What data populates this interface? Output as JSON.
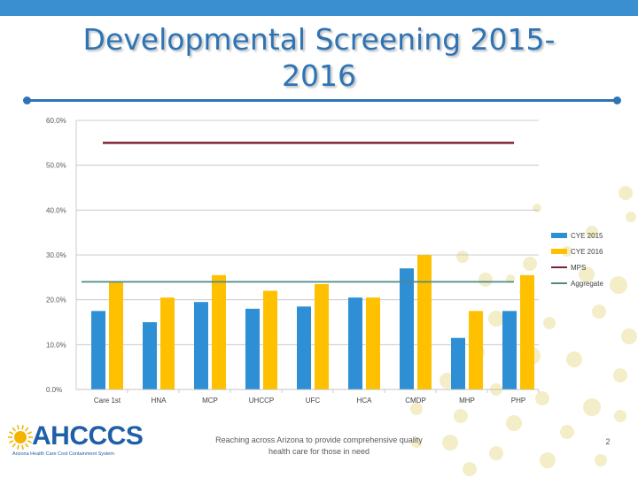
{
  "slide": {
    "title": "Developmental Screening 2015-2016",
    "tagline": "Reaching across Arizona to provide comprehensive quality health care for those in need",
    "page_number": "2",
    "logo_text": "AHCCCS",
    "logo_subtext": "Arizona Health Care Cost Containment System"
  },
  "colors": {
    "accent": "#2e74b5",
    "top_bar": "#3a8fd0",
    "cye2015": "#2e8fd4",
    "cye2016": "#ffc000",
    "mps": "#7b2230",
    "aggregate": "#4e8a85",
    "deco_circle": "#f3eec8"
  },
  "chart_data": {
    "type": "bar",
    "categories": [
      "Care 1st",
      "HNA",
      "MCP",
      "UHCCP",
      "UFC",
      "HCA",
      "CMDP",
      "MHP",
      "PHP"
    ],
    "series": [
      {
        "name": "CYE 2015",
        "values": [
          17.5,
          15.0,
          19.5,
          18.0,
          18.5,
          20.5,
          27.0,
          11.5,
          17.5
        ]
      },
      {
        "name": "CYE 2016",
        "values": [
          24.0,
          20.5,
          25.5,
          22.0,
          23.5,
          20.5,
          30.0,
          17.5,
          25.5
        ]
      }
    ],
    "reference_lines": [
      {
        "name": "MPS",
        "value": 55.0
      },
      {
        "name": "Aggregate",
        "value": 24.0
      }
    ],
    "yticks": [
      "0.0%",
      "10.0%",
      "20.0%",
      "30.0%",
      "40.0%",
      "50.0%",
      "60.0%"
    ],
    "ylim": [
      0,
      60
    ],
    "title": "",
    "xlabel": "",
    "ylabel": "",
    "grid": true,
    "legend": "right"
  }
}
